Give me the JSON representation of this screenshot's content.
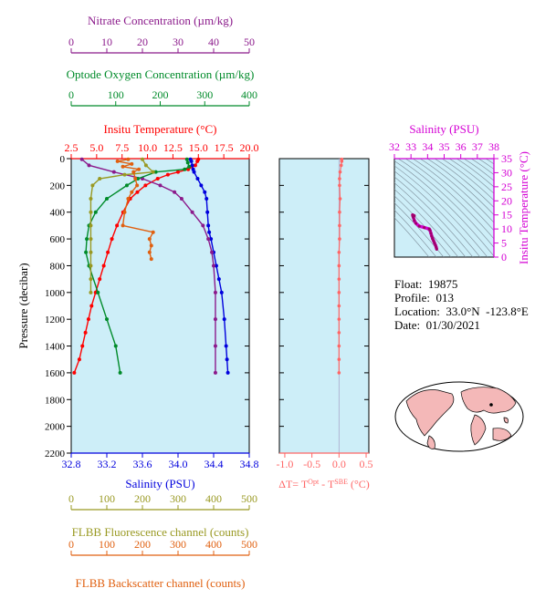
{
  "colors": {
    "nitrate": "#8b1a8b",
    "oxygen": "#008b2a",
    "temperature": "#ff0000",
    "salinity": "#0000dd",
    "fluorescence": "#999922",
    "backscatter": "#e06010",
    "delta_t": "#ff6666",
    "panel_bg": "#cdeef8",
    "inset_salinity": "#d400d4"
  },
  "chart_data": [
    {
      "type": "line",
      "panel": "main-profile",
      "ylabel": "Pressure (decibar)",
      "ylim": [
        2200,
        0
      ],
      "yticks": [
        "0",
        "200",
        "400",
        "600",
        "800",
        "1000",
        "1200",
        "1400",
        "1600",
        "1800",
        "2000",
        "2200"
      ],
      "axes": {
        "nitrate": {
          "label": "Nitrate Concentration (µm/kg)",
          "range": [
            0,
            50
          ],
          "ticks": [
            "0",
            "10",
            "20",
            "30",
            "40",
            "50"
          ]
        },
        "oxygen": {
          "label": "Optode Oxygen Concentration (µm/kg)",
          "range": [
            0,
            400
          ],
          "ticks": [
            "0",
            "100",
            "200",
            "300",
            "400"
          ]
        },
        "temperature": {
          "label": "Insitu Temperature (°C)",
          "range": [
            2.5,
            20.0
          ],
          "ticks": [
            "2.5",
            "5.0",
            "7.5",
            "10.0",
            "12.5",
            "15.0",
            "17.5",
            "20.0"
          ]
        },
        "salinity": {
          "label": "Salinity (PSU)",
          "range": [
            32.8,
            34.8
          ],
          "ticks": [
            "32.8",
            "33.2",
            "33.6",
            "34.0",
            "34.4",
            "34.8"
          ]
        },
        "fluorescence": {
          "label": "FLBB Fluorescence channel (counts)",
          "range": [
            0,
            500
          ],
          "ticks": [
            "0",
            "100",
            "200",
            "300",
            "400",
            "500"
          ]
        },
        "backscatter": {
          "label": "FLBB Backscatter channel (counts)",
          "range": [
            0,
            500
          ],
          "ticks": [
            "0",
            "100",
            "200",
            "300",
            "400",
            "500"
          ]
        }
      },
      "series": [
        {
          "key": "temperature",
          "axis": "temperature",
          "p": [
            5,
            20,
            50,
            80,
            100,
            120,
            150,
            200,
            250,
            300,
            400,
            500,
            600,
            700,
            800,
            900,
            1000,
            1100,
            1200,
            1300,
            1400,
            1500,
            1600
          ],
          "v": [
            15.0,
            14.9,
            14.7,
            14.0,
            13.0,
            12.0,
            11.0,
            9.8,
            9.0,
            8.3,
            7.6,
            7.0,
            6.5,
            6.1,
            5.7,
            5.3,
            4.9,
            4.5,
            4.2,
            3.9,
            3.6,
            3.3,
            2.8
          ]
        },
        {
          "key": "salinity",
          "axis": "salinity",
          "p": [
            5,
            20,
            50,
            80,
            100,
            150,
            200,
            250,
            300,
            400,
            500,
            550,
            600,
            700,
            800,
            900,
            1000,
            1200,
            1400,
            1500,
            1600
          ],
          "v": [
            34.14,
            34.15,
            34.16,
            34.17,
            34.18,
            34.22,
            34.26,
            34.3,
            34.32,
            34.33,
            34.34,
            34.35,
            34.37,
            34.4,
            34.43,
            34.46,
            34.49,
            34.52,
            34.54,
            34.55,
            34.56
          ]
        },
        {
          "key": "nitrate",
          "axis": "nitrate",
          "p": [
            5,
            50,
            100,
            150,
            200,
            250,
            300,
            400,
            500,
            600,
            700,
            800,
            1000,
            1200,
            1400,
            1600
          ],
          "v": [
            3,
            5,
            12,
            20,
            25,
            29,
            31,
            34,
            37,
            38.5,
            39.5,
            40,
            40.5,
            40.5,
            40.5,
            40.5
          ]
        },
        {
          "key": "oxygen",
          "axis": "oxygen",
          "p": [
            5,
            30,
            60,
            80,
            100,
            150,
            200,
            300,
            400,
            500,
            600,
            700,
            800,
            1000,
            1200,
            1400,
            1600
          ],
          "v": [
            260,
            262,
            265,
            255,
            190,
            150,
            125,
            80,
            55,
            40,
            35,
            33,
            40,
            60,
            80,
            100,
            110
          ]
        },
        {
          "key": "fluorescence",
          "axis": "fluorescence",
          "p": [
            5,
            50,
            100,
            120,
            150,
            200,
            300,
            400,
            500,
            600,
            700,
            800,
            900,
            1000
          ],
          "v": [
            200,
            210,
            230,
            150,
            80,
            60,
            55,
            55,
            55,
            55,
            55,
            55,
            55,
            55
          ]
        },
        {
          "key": "backscatter",
          "axis": "backscatter",
          "p": [
            5,
            20,
            40,
            60,
            80,
            100,
            150,
            200,
            250,
            300,
            400,
            500,
            550,
            600,
            650,
            700,
            750
          ],
          "v": [
            160,
            130,
            170,
            145,
            190,
            175,
            180,
            185,
            170,
            160,
            150,
            145,
            230,
            220,
            225,
            220,
            225
          ]
        }
      ]
    },
    {
      "type": "scatter",
      "panel": "delta-t",
      "xlabel": "ΔT= T^Opt - T^SBE (°C)",
      "xlim": [
        -1.1,
        0.55
      ],
      "xticks": [
        "-1.0",
        "-0.5",
        "0.0",
        "0.5"
      ],
      "ylim": [
        2200,
        0
      ],
      "p": [
        5,
        20,
        50,
        100,
        150,
        200,
        300,
        400,
        500,
        600,
        700,
        800,
        900,
        1000,
        1100,
        1200,
        1300,
        1400,
        1500,
        1600
      ],
      "dt": [
        0.05,
        0.05,
        0.04,
        0.02,
        0.01,
        0.01,
        0.02,
        0.01,
        0.01,
        0.01,
        0.0,
        0.0,
        0.0,
        0.0,
        0.0,
        0.0,
        0.0,
        0.0,
        0.0,
        0.0
      ]
    },
    {
      "type": "line",
      "panel": "ts-inset",
      "title": "Salinity (PSU)",
      "xlim": [
        32,
        38
      ],
      "xticks": [
        "32",
        "33",
        "34",
        "35",
        "36",
        "37",
        "38"
      ],
      "ylabel": "Insitu Temperature (°C)",
      "ylim": [
        0,
        35
      ],
      "yticks": [
        "0",
        "5",
        "10",
        "15",
        "20",
        "25",
        "30",
        "35"
      ],
      "series": [
        {
          "name": "",
          "s": [
            34.55,
            34.52,
            34.48,
            34.42,
            34.36,
            34.3,
            34.25,
            34.2,
            34.15,
            34.1,
            33.8,
            33.5,
            33.3,
            33.2,
            33.15,
            33.12,
            33.1,
            33.12,
            33.2
          ],
          "t": [
            2.8,
            3.5,
            4.2,
            5.0,
            5.8,
            6.6,
            7.5,
            8.5,
            9.5,
            10.0,
            10.5,
            11.0,
            12.0,
            13.0,
            14.0,
            14.5,
            15.0,
            14.9,
            14.7
          ]
        }
      ]
    }
  ],
  "info": {
    "float": "Float:  19875",
    "profile": "Profile:  013",
    "location": "Location:  33.0°N  -123.8°E",
    "date": "Date:  01/30/2021"
  }
}
